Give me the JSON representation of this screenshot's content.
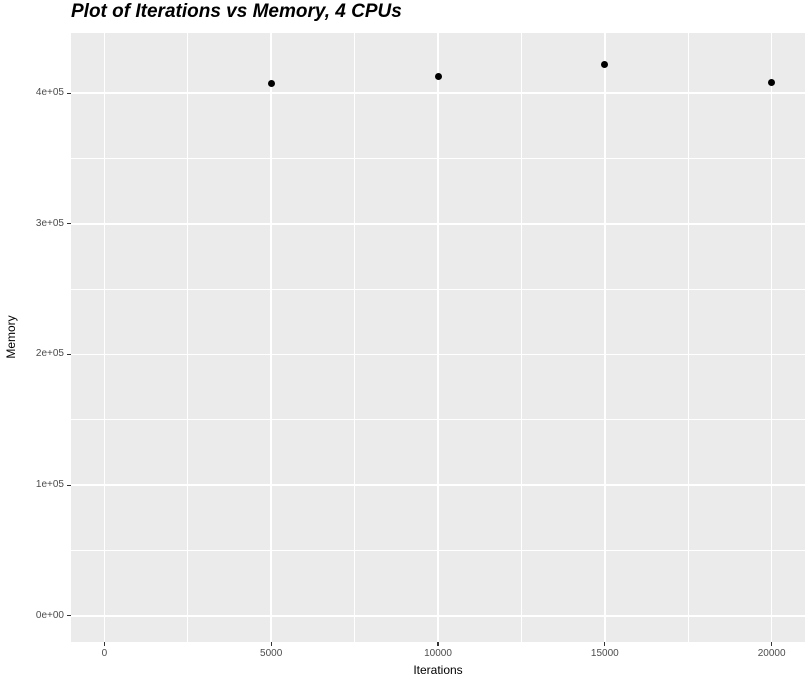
{
  "title": "Plot of Iterations vs Memory, 4 CPUs",
  "chart_data": {
    "type": "scatter",
    "title": "Plot of Iterations vs Memory, 4 CPUs",
    "xlabel": "Iterations",
    "ylabel": "Memory",
    "x": [
      5000,
      10000,
      15000,
      20000
    ],
    "y": [
      407000,
      413000,
      422000,
      408000
    ],
    "series": [
      {
        "name": "Memory",
        "x": [
          5000,
          10000,
          15000,
          20000
        ],
        "values": [
          407000,
          413000,
          422000,
          408000
        ]
      }
    ],
    "xlim": [
      -1000,
      21000
    ],
    "ylim": [
      -20000,
      446000
    ],
    "x_ticks": {
      "values": [
        0,
        5000,
        10000,
        15000,
        20000
      ],
      "labels": [
        "0",
        "5000",
        "10000",
        "15000",
        "20000"
      ]
    },
    "y_ticks": {
      "values": [
        0,
        100000,
        200000,
        300000,
        400000
      ],
      "labels": [
        "0e+00",
        "1e+05",
        "2e+05",
        "3e+05",
        "4e+05"
      ]
    },
    "x_minor_ticks": [
      2500,
      7500,
      12500,
      17500
    ],
    "y_minor_ticks": [
      50000,
      150000,
      250000,
      350000
    ],
    "grid": true,
    "legend": false,
    "style": "ggplot2",
    "colors": {
      "panel_background": "#EBEBEB",
      "grid_major": "#FFFFFF",
      "grid_minor": "#FFFFFF",
      "point": "#000000",
      "tick_label": "#4D4D4D",
      "axis_title": "#000000",
      "title": "#000000",
      "tick_mark": "#333333",
      "figure_background": "#FFFFFF"
    }
  }
}
